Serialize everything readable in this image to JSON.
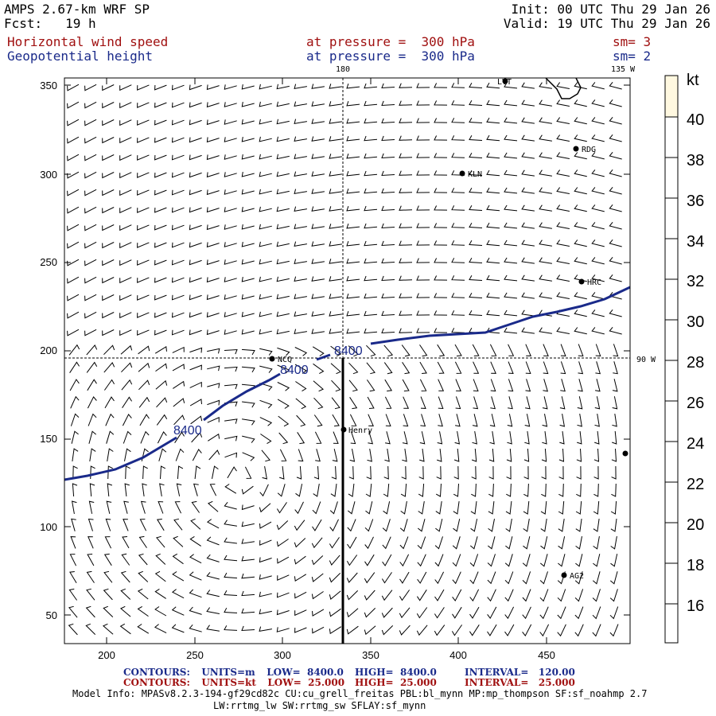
{
  "header": {
    "title": "AMPS 2.67-km WRF SP",
    "forecast": "Fcst:   19 h",
    "init": "Init: 00 UTC Thu 29 Jan 26",
    "valid": "Valid: 19 UTC Thu 29 Jan 26",
    "field1": "Horizontal wind speed",
    "field1_level": "at pressure =  300 hPa",
    "field1_smooth": "sm= 3",
    "field2": "Geopotential height",
    "field2_level": "at pressure =  300 hPa",
    "field2_smooth": "sm= 2"
  },
  "map": {
    "x_ticks": [
      "200",
      "250",
      "300",
      "350",
      "400",
      "450"
    ],
    "y_ticks": [
      "350",
      "300",
      "250",
      "200",
      "150",
      "100",
      "50"
    ],
    "lon_labels": {
      "top_180": "180",
      "top_135w": "135 W",
      "right_90w": "90 W"
    },
    "contour_labels": [
      "8400",
      "8400",
      "8400"
    ],
    "stations": [
      {
        "name": "LVT"
      },
      {
        "name": "RDG"
      },
      {
        "name": "KLN"
      },
      {
        "name": "HRC"
      },
      {
        "name": "NCQ"
      },
      {
        "name": "Henry"
      },
      {
        "name": "AG2"
      },
      {
        "name": ""
      }
    ],
    "colors": {
      "contour": "#1a2a8a",
      "barb": "#000000",
      "colorbar_top": "#fff8e0"
    }
  },
  "colorbar": {
    "unit": "kt",
    "labels": [
      "40",
      "38",
      "36",
      "34",
      "32",
      "30",
      "28",
      "26",
      "24",
      "22",
      "20",
      "18",
      "16"
    ]
  },
  "footer": {
    "contours_height": {
      "label": "CONTOURS:",
      "units": "UNITS=m",
      "low": "LOW=  8400.0",
      "high": "HIGH=  8400.0",
      "interval": "INTERVAL=   120.00"
    },
    "contours_speed": {
      "label": "CONTOURS:",
      "units": "UNITS=kt",
      "low": "LOW=  25.000",
      "high": "HIGH=  25.000",
      "interval": "INTERVAL=   25.000"
    },
    "model_info_1": "Model Info: MPASv8.2.3-194-gf29cd82c CU:cu_grell_freitas PBL:bl_mynn MP:mp_thompson SF:sf_noahmp 2.7",
    "model_info_2": "LW:rrtmg_lw SW:rrtmg_sw SFLAY:sf_mynn"
  }
}
